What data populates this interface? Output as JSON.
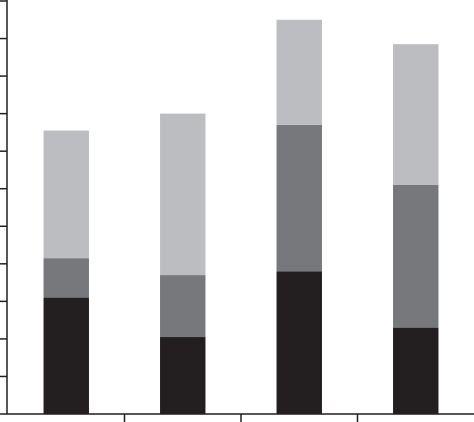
{
  "chart_data": {
    "type": "stacked_bar",
    "categories": [
      null,
      null,
      null,
      null
    ],
    "series": [
      {
        "color": "#231f20",
        "values": [
          3.1,
          2.05,
          3.8,
          2.3
        ]
      },
      {
        "color": "#77787b",
        "values": [
          1.05,
          1.65,
          3.9,
          3.8
        ]
      },
      {
        "color": "#bcbdc0",
        "values": [
          3.4,
          4.3,
          2.8,
          3.75
        ]
      }
    ],
    "ylim": [
      0,
      11
    ],
    "yticks": [
      0,
      1,
      2,
      3,
      4,
      5,
      6,
      7,
      8,
      9,
      10,
      11
    ],
    "grid": false
  }
}
